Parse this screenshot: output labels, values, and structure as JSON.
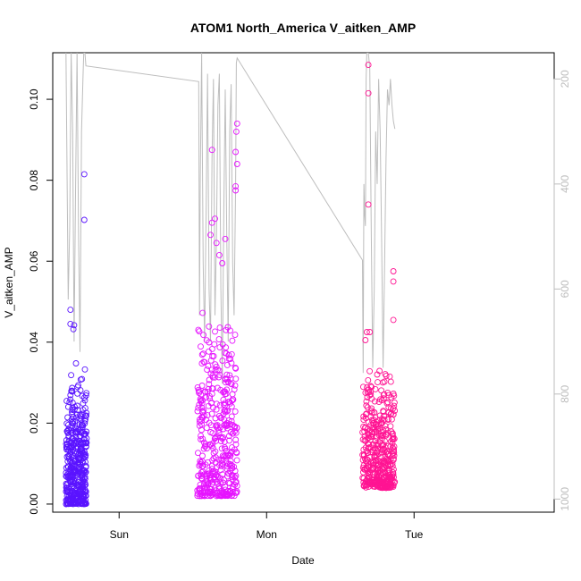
{
  "chart_data": {
    "type": "scatter",
    "title": "ATOM1 North_America V_aitken_AMP",
    "xlabel": "Date",
    "ylabel": "V_aitken_AMP",
    "x_ticks": [
      "Sun",
      "Mon",
      "Tue"
    ],
    "y_ticks": [
      "0.00",
      "0.02",
      "0.04",
      "0.06",
      "0.08",
      "0.10"
    ],
    "y2_ticks": [
      "200",
      "400",
      "600",
      "800",
      "1000"
    ],
    "xlim_days": [
      -0.45,
      2.95
    ],
    "ylim": [
      -0.002,
      0.1115
    ],
    "y2lim": [
      1025,
      150
    ],
    "y2_reversed": true,
    "grid": false,
    "colors": {
      "cluster1": "#5a14ff",
      "cluster2": "#e614ff",
      "cluster3": "#ff1493",
      "secondary_line": "#bdbdbd"
    },
    "clusters": [
      {
        "color_key": "cluster1",
        "x_range_days": [
          -0.36,
          -0.22
        ],
        "y_range": [
          0.0,
          0.036
        ],
        "outliers": [
          [
            -0.236,
            0.0815
          ],
          [
            -0.236,
            0.0702
          ],
          [
            -0.33,
            0.048
          ],
          [
            -0.33,
            0.0445
          ],
          [
            -0.31,
            0.0432
          ],
          [
            -0.305,
            0.0442
          ]
        ]
      },
      {
        "color_key": "cluster2",
        "x_range_days": [
          0.53,
          0.8
        ],
        "y_range": [
          0.002,
          0.05
        ],
        "outliers": [
          [
            0.8,
            0.094
          ],
          [
            0.795,
            0.092
          ],
          [
            0.63,
            0.0875
          ],
          [
            0.79,
            0.087
          ],
          [
            0.8,
            0.084
          ],
          [
            0.79,
            0.0785
          ],
          [
            0.79,
            0.0775
          ],
          [
            0.63,
            0.0695
          ],
          [
            0.65,
            0.0705
          ],
          [
            0.62,
            0.0665
          ],
          [
            0.66,
            0.0645
          ],
          [
            0.68,
            0.0615
          ],
          [
            0.72,
            0.0655
          ],
          [
            0.7,
            0.0595
          ]
        ]
      },
      {
        "color_key": "cluster3",
        "x_range_days": [
          1.65,
          1.87
        ],
        "y_range": [
          0.004,
          0.035
        ],
        "outliers": [
          [
            1.69,
            0.1085
          ],
          [
            1.69,
            0.1015
          ],
          [
            1.69,
            0.074
          ],
          [
            1.86,
            0.0575
          ],
          [
            1.86,
            0.055
          ],
          [
            1.86,
            0.0455
          ],
          [
            1.68,
            0.0425
          ],
          [
            1.67,
            0.0405
          ],
          [
            1.7,
            0.0425
          ]
        ]
      }
    ],
    "secondary_line": [
      [
        -0.36,
        150
      ],
      [
        -0.345,
        620
      ],
      [
        -0.335,
        480
      ],
      [
        -0.325,
        150
      ],
      [
        -0.315,
        300
      ],
      [
        -0.305,
        700
      ],
      [
        -0.295,
        400
      ],
      [
        -0.285,
        150
      ],
      [
        -0.275,
        500
      ],
      [
        -0.265,
        720
      ],
      [
        -0.255,
        300
      ],
      [
        -0.245,
        200
      ],
      [
        -0.24,
        150
      ],
      [
        -0.232,
        150
      ],
      [
        -0.225,
        175
      ],
      [
        0.54,
        205
      ],
      [
        0.545,
        650
      ],
      [
        0.55,
        400
      ],
      [
        0.56,
        150
      ],
      [
        0.57,
        550
      ],
      [
        0.58,
        700
      ],
      [
        0.59,
        450
      ],
      [
        0.6,
        190
      ],
      [
        0.61,
        600
      ],
      [
        0.62,
        700
      ],
      [
        0.63,
        350
      ],
      [
        0.64,
        200
      ],
      [
        0.65,
        650
      ],
      [
        0.66,
        500
      ],
      [
        0.67,
        250
      ],
      [
        0.68,
        190
      ],
      [
        0.69,
        600
      ],
      [
        0.7,
        780
      ],
      [
        0.71,
        450
      ],
      [
        0.72,
        220
      ],
      [
        0.73,
        500
      ],
      [
        0.74,
        700
      ],
      [
        0.75,
        300
      ],
      [
        0.76,
        210
      ],
      [
        0.77,
        550
      ],
      [
        0.78,
        650
      ],
      [
        0.79,
        400
      ],
      [
        0.795,
        170
      ],
      [
        0.8,
        160
      ],
      [
        1.65,
        545
      ],
      [
        1.655,
        760
      ],
      [
        1.66,
        400
      ],
      [
        1.665,
        460
      ],
      [
        1.67,
        480
      ],
      [
        1.675,
        200
      ],
      [
        1.68,
        150
      ],
      [
        1.69,
        150
      ],
      [
        1.7,
        180
      ],
      [
        1.71,
        500
      ],
      [
        1.72,
        750
      ],
      [
        1.73,
        600
      ],
      [
        1.74,
        300
      ],
      [
        1.75,
        400
      ],
      [
        1.76,
        200
      ],
      [
        1.77,
        300
      ],
      [
        1.78,
        500
      ],
      [
        1.79,
        750
      ],
      [
        1.8,
        550
      ],
      [
        1.81,
        350
      ],
      [
        1.82,
        220
      ],
      [
        1.83,
        250
      ],
      [
        1.84,
        200
      ],
      [
        1.85,
        250
      ],
      [
        1.86,
        280
      ],
      [
        1.87,
        295
      ]
    ]
  }
}
